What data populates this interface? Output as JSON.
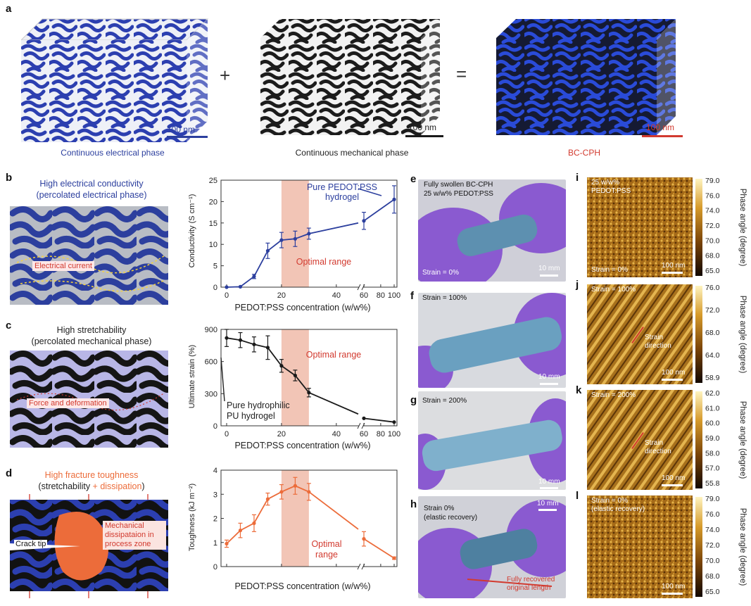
{
  "panels": {
    "a": "a",
    "b": "b",
    "c": "c",
    "d": "d",
    "e": "e",
    "f": "f",
    "g": "g",
    "h": "h",
    "i": "i",
    "j": "j",
    "k": "k",
    "l": "l"
  },
  "colors": {
    "blue": "#2c3f9e",
    "red": "#d23a2f",
    "orange": "#ec6c3a",
    "shade": "#f2c5b6",
    "lavender": "#b8b6e6",
    "black": "#1a1a1a",
    "glove": "#8a5ad0",
    "gel": "#5d90b0"
  },
  "row_a": {
    "cube1_label": "Continuous electrical phase",
    "cube2_label": "Continuous mechanical phase",
    "cube3_label": "BC-CPH",
    "plus": "+",
    "equals": "=",
    "scale1": "100 nm",
    "scale2": "100 nm",
    "scale3": "100 nm"
  },
  "schem_b": {
    "title1": "High electrical conductivity",
    "title2": "(percolated electrical phase)",
    "inset": "Electrical current"
  },
  "schem_c": {
    "title1": "High stretchability",
    "title2": "(percolated mechanical phase)",
    "inset": "Force and deformation"
  },
  "schem_d": {
    "title1": "High fracture toughness",
    "t2_open": "(",
    "t2_a": "stretchability",
    "t2_plus": " + ",
    "t2_b": "dissipation",
    "t2_close": ")",
    "crack": "Crack tip",
    "dissip1": "Mechanical",
    "dissip2": "dissipataion in",
    "dissip3": "process zone"
  },
  "charts": [
    {
      "type": "line",
      "ylabel": "Conductivity (S cm⁻¹)",
      "xlabel": "PEDOT:PSS concentration (w/w%)",
      "ylim": [
        0,
        25
      ],
      "yticks": [
        "0",
        "5",
        "10",
        "15",
        "20",
        "25"
      ],
      "xticks": [
        "0",
        "20",
        "40",
        "60",
        "80",
        "100"
      ],
      "seg1": {
        "x": [
          0,
          5,
          10,
          15,
          20,
          25,
          30
        ],
        "y": [
          0,
          0.1,
          2.5,
          8.5,
          11,
          11.3,
          12.5
        ],
        "err": [
          0,
          0,
          0.5,
          1.8,
          1.8,
          1.8,
          1.3
        ]
      },
      "tail": [
        {
          "x": 30,
          "y": 12.5
        },
        {
          "x": 48,
          "y": 15
        }
      ],
      "seg2": {
        "x": [
          55,
          100
        ],
        "y": [
          15.5,
          20.5
        ],
        "err": [
          2.0,
          3.2
        ]
      },
      "optimal": "Optimal range",
      "annot1": "Pure PEDOT:PSS",
      "annot2": "hydrogel",
      "color": "#2c3f9e"
    },
    {
      "type": "line",
      "ylabel": "Ultimate strain (%)",
      "xlabel": "PEDOT:PSS concentration (w/w%)",
      "ylim": [
        0,
        900
      ],
      "yticks": [
        "0",
        "300",
        "600",
        "900"
      ],
      "xticks": [
        "0",
        "20",
        "40",
        "60",
        "80",
        "100"
      ],
      "seg1": {
        "x": [
          0,
          5,
          10,
          15,
          20,
          25,
          30
        ],
        "y": [
          820,
          800,
          760,
          730,
          560,
          470,
          310
        ],
        "err": [
          80,
          70,
          70,
          110,
          60,
          50,
          40
        ]
      },
      "tail": [
        {
          "x": 30,
          "y": 310
        },
        {
          "x": 48,
          "y": 110
        }
      ],
      "seg2": {
        "x": [
          55,
          100
        ],
        "y": [
          70,
          35
        ],
        "err": [
          0,
          0
        ]
      },
      "optimal": "Optimal range",
      "annot1": "Pure hydrophilic",
      "annot2": "PU hydrogel",
      "color": "#1a1a1a"
    },
    {
      "type": "line",
      "ylabel": "Toughness (kJ m⁻²)",
      "xlabel": "PEDOT:PSS concentration (w/w%)",
      "ylim": [
        0,
        4
      ],
      "yticks": [
        "0",
        "1",
        "2",
        "3",
        "4"
      ],
      "xticks": [
        "0",
        "20",
        "40",
        "60",
        "80",
        "100"
      ],
      "seg1": {
        "x": [
          0,
          5,
          10,
          15,
          20,
          25,
          30
        ],
        "y": [
          0.95,
          1.5,
          1.8,
          2.8,
          3.1,
          3.35,
          3.1
        ],
        "err": [
          0.15,
          0.3,
          0.35,
          0.25,
          0.3,
          0.35,
          0.35
        ]
      },
      "tail": [
        {
          "x": 30,
          "y": 3.1
        },
        {
          "x": 48,
          "y": 1.55
        }
      ],
      "seg2": {
        "x": [
          55,
          100
        ],
        "y": [
          1.15,
          0.35
        ],
        "err": [
          0.3,
          0.05
        ]
      },
      "optimal1": "Optimal",
      "optimal2": "range",
      "color": "#ec6c3a"
    }
  ],
  "photos": {
    "e": {
      "t1": "Fully swollen BC-CPH",
      "t2": "25 w/w% PEDOT:PSS",
      "strain": "Strain = 0%",
      "scale": "10 mm"
    },
    "f": {
      "strain": "Strain = 100%",
      "scale": "10 mm"
    },
    "g": {
      "strain": "Strain = 200%",
      "scale": "10 mm"
    },
    "h": {
      "t1": "Strain 0%",
      "t2": "(elastic recovery)",
      "scale": "10 mm",
      "rec1": "Fully recovered",
      "rec2": "original length"
    }
  },
  "afm": {
    "ylabel": "Phase angle (degree)",
    "i": {
      "t1": "25 w/w%",
      "t2": "PEDOT:PSS",
      "strain": "Strain = 0%",
      "scale": "100 nm",
      "ticks": [
        "79.0",
        "76.0",
        "74.0",
        "72.0",
        "70.0",
        "68.0",
        "65.0"
      ]
    },
    "j": {
      "strain": "Strain = 100%",
      "dir1": "Strain",
      "dir2": "direction",
      "scale": "100 nm",
      "ticks": [
        "76.0",
        "72.0",
        "68.0",
        "64.0",
        "58.9"
      ]
    },
    "k": {
      "strain": "Strain = 200%",
      "dir1": "Strain",
      "dir2": "direction",
      "scale": "100 nm",
      "ticks": [
        "62.0",
        "61.0",
        "60.0",
        "59.0",
        "58.0",
        "57.0",
        "55.8"
      ]
    },
    "l": {
      "strain": "Strain = 0%",
      "t2": "(elastic recovery)",
      "scale": "100 nm",
      "ticks": [
        "79.0",
        "76.0",
        "74.0",
        "72.0",
        "70.0",
        "68.0",
        "65.0"
      ]
    }
  }
}
